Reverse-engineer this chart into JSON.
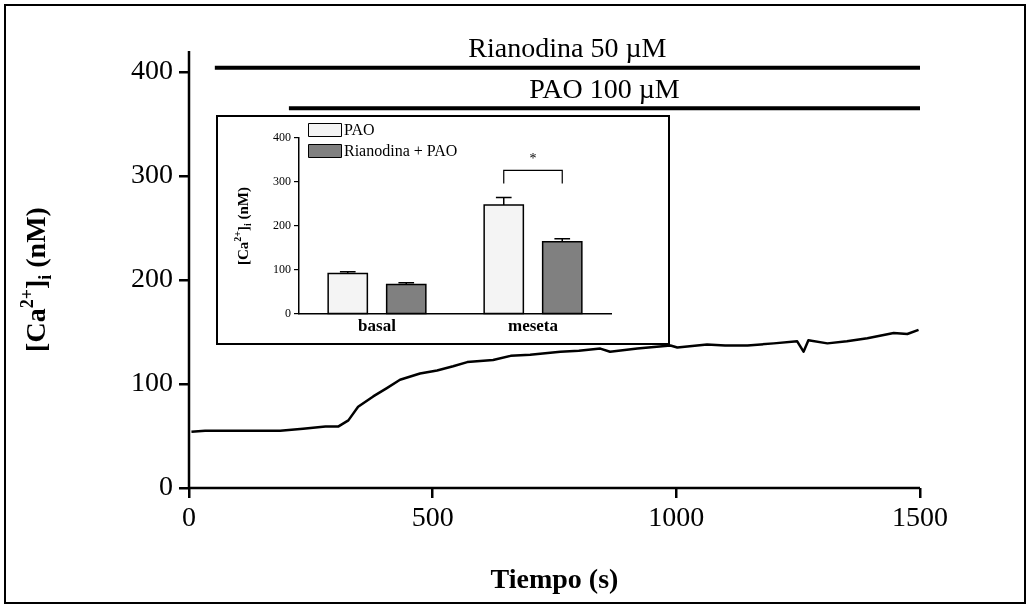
{
  "chart_data": [
    {
      "type": "line",
      "xlabel": "Tiempo (s)",
      "ylabel": "[Ca$^{2+}$]$_{i}$ (nM)",
      "xlim": [
        0,
        1500
      ],
      "xticks": [
        0,
        500,
        1000,
        1500
      ],
      "ylim": [
        0,
        420
      ],
      "yticks": [
        0,
        100,
        200,
        300,
        400
      ],
      "grid": false,
      "legend": false,
      "marker": "none",
      "line_style": "solid",
      "series": [
        {
          "color": "#000000",
          "x": [
            5,
            33,
            90,
            150,
            187,
            234,
            280,
            306,
            327,
            347,
            378,
            406,
            433,
            474,
            509,
            542,
            571,
            624,
            660,
            700,
            762,
            800,
            844,
            864,
            920,
            988,
            1002,
            1063,
            1100,
            1146,
            1200,
            1248,
            1261,
            1271,
            1310,
            1350,
            1392,
            1446,
            1474,
            1497
          ],
          "values": [
            54,
            55,
            55,
            55,
            55,
            57,
            59,
            59,
            65,
            78,
            88,
            96,
            104,
            110,
            113,
            117,
            121,
            123,
            127,
            128,
            131,
            132,
            134,
            131,
            134,
            137,
            135,
            138,
            137,
            137,
            139,
            141,
            131,
            142,
            139,
            141,
            144,
            149,
            148,
            152
          ]
        },
        {
          "name": "Rianodina 50 µM",
          "color": "#000000",
          "x": [
            53,
            1500
          ],
          "values": [
            404,
            404
          ]
        },
        {
          "name": "PAO 100 µM",
          "color": "#000000",
          "x": [
            205,
            1500
          ],
          "values": [
            365,
            365
          ]
        }
      ]
    },
    {
      "type": "bar",
      "ylabel": "[Ca$^{2+}$]$_{i}$ (nM)",
      "categories": [
        "basal",
        "meseta"
      ],
      "ylim": [
        0,
        400
      ],
      "yticks": [
        0,
        100,
        200,
        300,
        400
      ],
      "grid": false,
      "legend": "top left",
      "annotations": [
        "*"
      ],
      "series": [
        {
          "name": "PAO",
          "color": "#f4f4f4",
          "values": [
            92,
            248
          ],
          "errors": [
            4,
            17
          ]
        },
        {
          "name": "Rianodina + PAO",
          "color": "#808080",
          "values": [
            67,
            164
          ],
          "errors": [
            4,
            7
          ]
        }
      ]
    }
  ]
}
